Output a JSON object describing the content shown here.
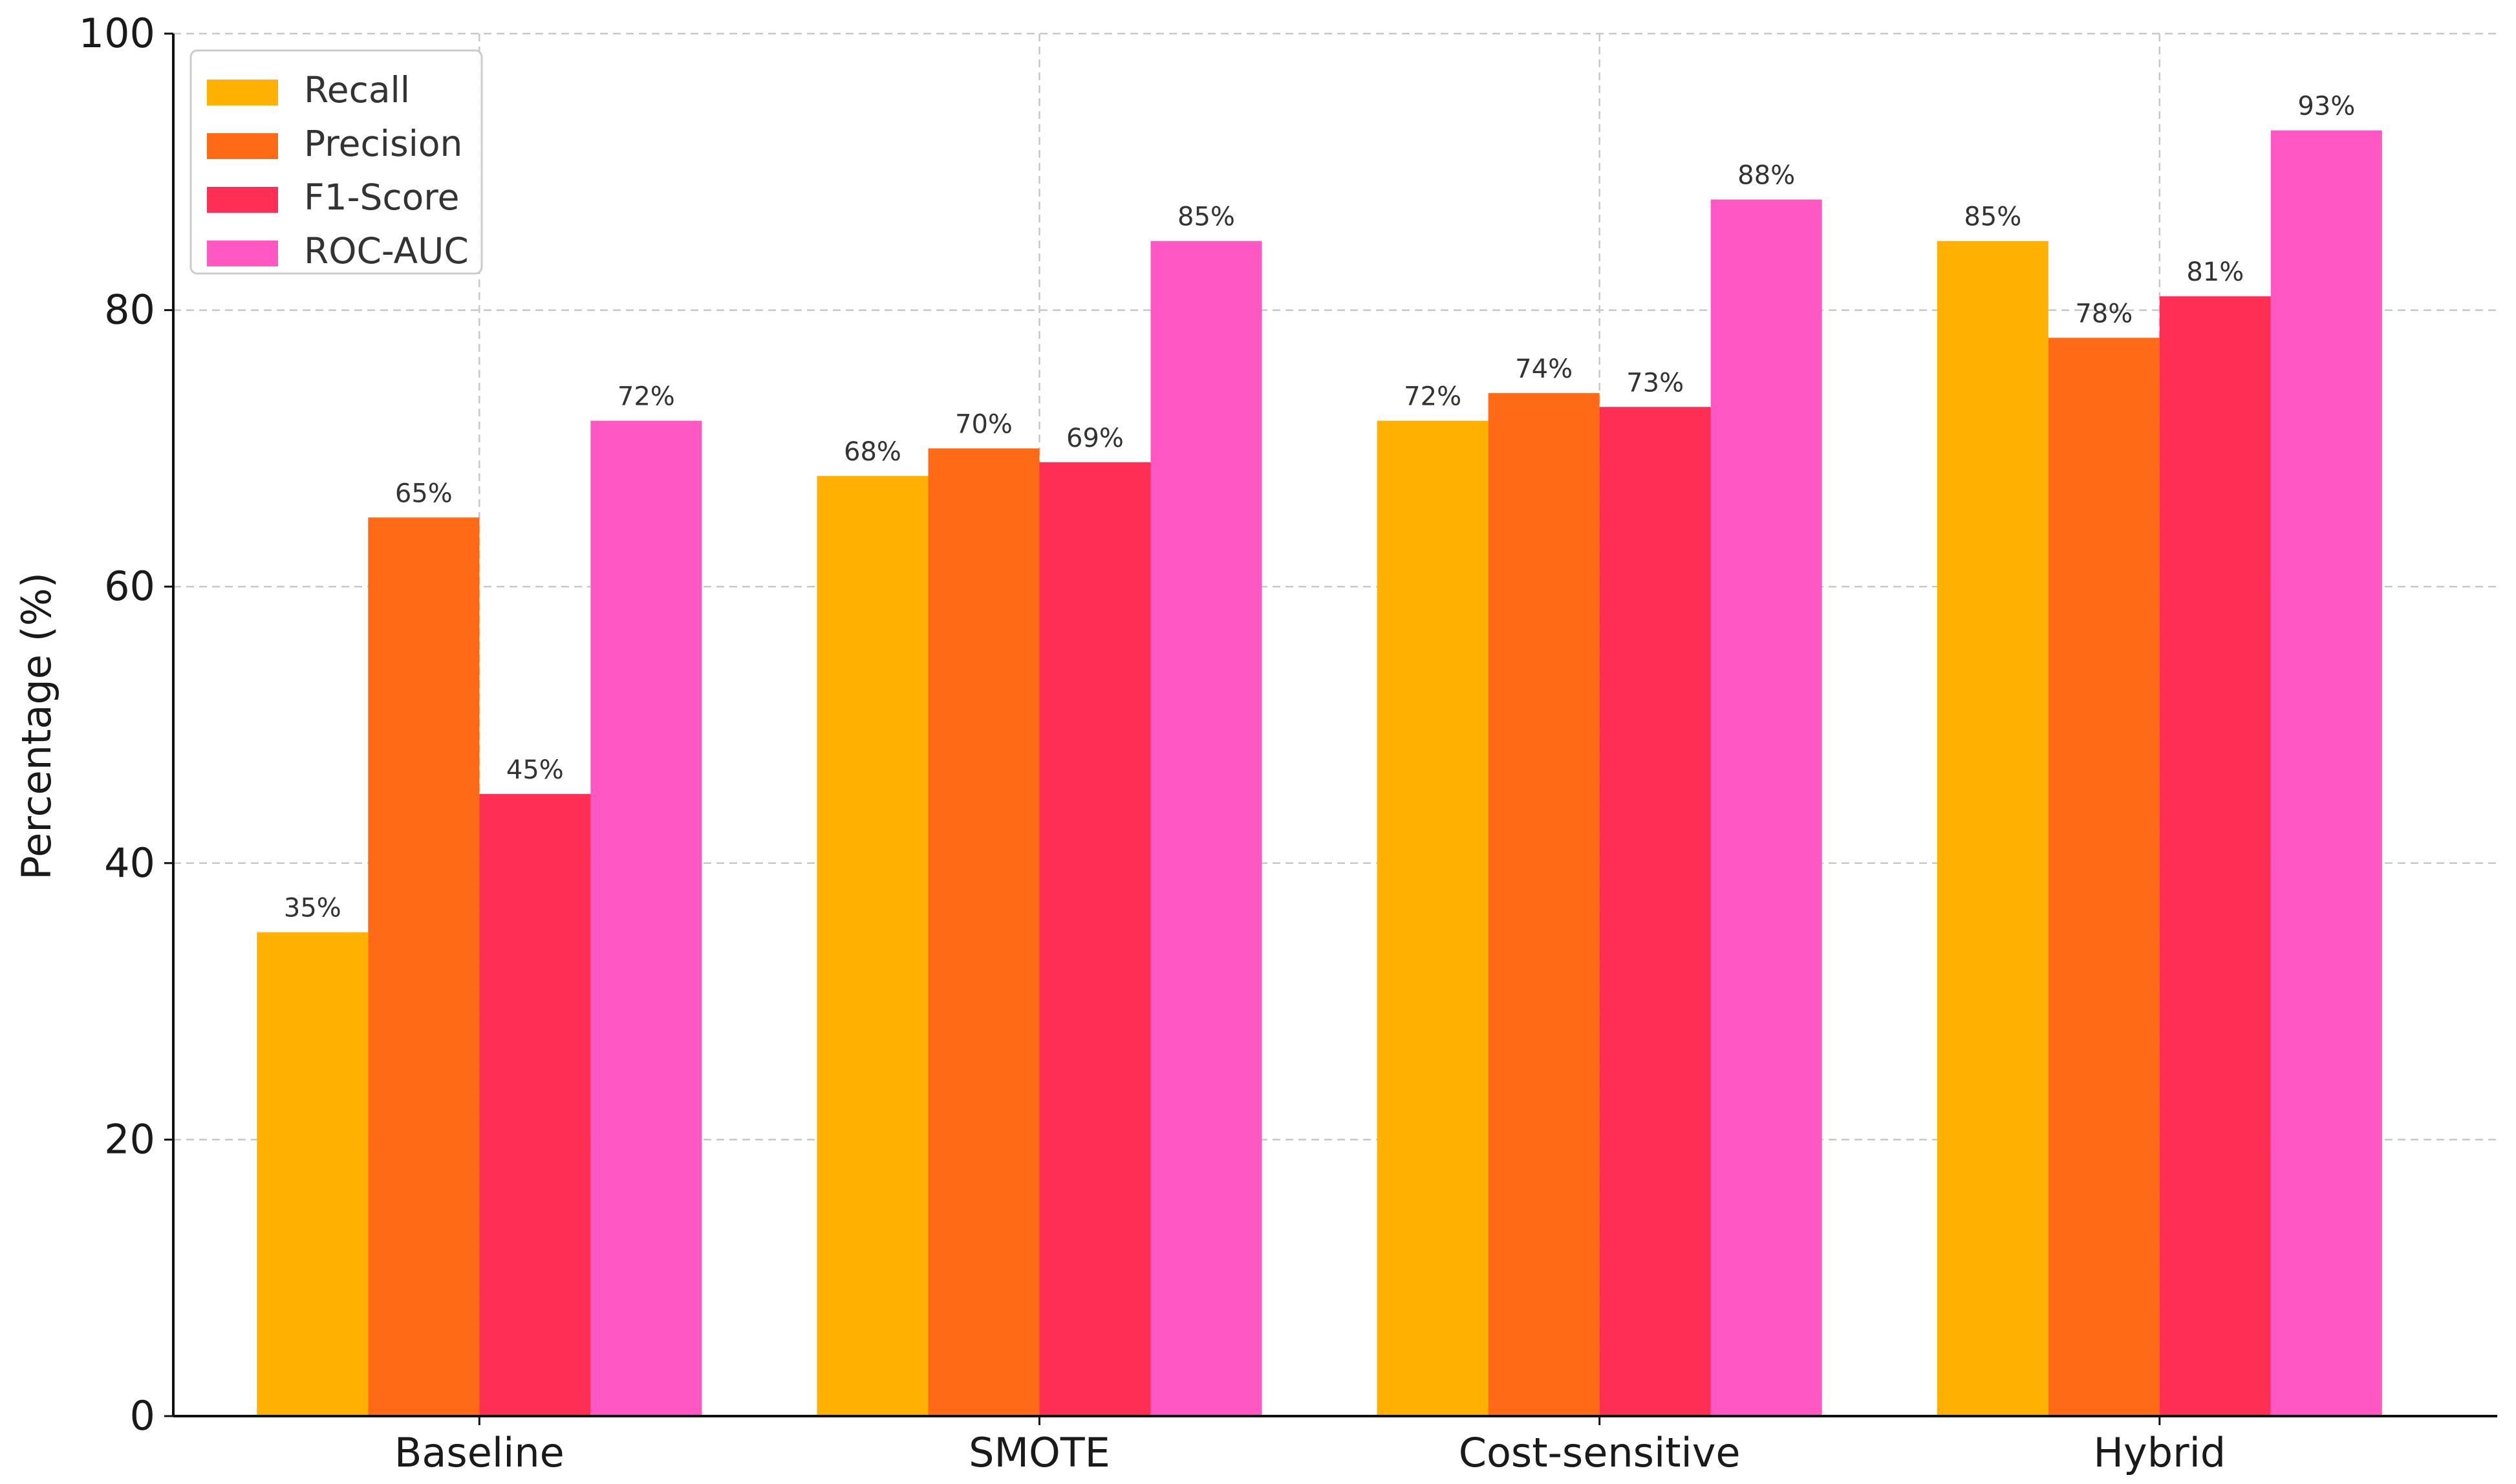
{
  "chart_data": {
    "type": "bar",
    "title": "",
    "xlabel": "",
    "ylabel": "Percentage (%)",
    "ylim": [
      0,
      100
    ],
    "yticks": [
      0,
      20,
      40,
      60,
      80,
      100
    ],
    "grid": true,
    "legend_position": "top-left",
    "categories": [
      "Baseline",
      "SMOTE",
      "Cost-sensitive",
      "Hybrid"
    ],
    "series": [
      {
        "name": "Recall",
        "color": "#FFB000",
        "values": [
          35,
          68,
          72,
          85
        ],
        "labels": [
          "35%",
          "68%",
          "72%",
          "85%"
        ]
      },
      {
        "name": "Precision",
        "color": "#FE6A15",
        "values": [
          65,
          70,
          74,
          78
        ],
        "labels": [
          "65%",
          "70%",
          "74%",
          "78%"
        ]
      },
      {
        "name": "F1-Score",
        "color": "#FF2E55",
        "values": [
          45,
          69,
          73,
          81
        ],
        "labels": [
          "45%",
          "69%",
          "73%",
          "81%"
        ]
      },
      {
        "name": "ROC-AUC",
        "color": "#FF57C4",
        "values": [
          72,
          85,
          88,
          93
        ],
        "labels": [
          "72%",
          "85%",
          "88%",
          "93%"
        ]
      }
    ]
  }
}
